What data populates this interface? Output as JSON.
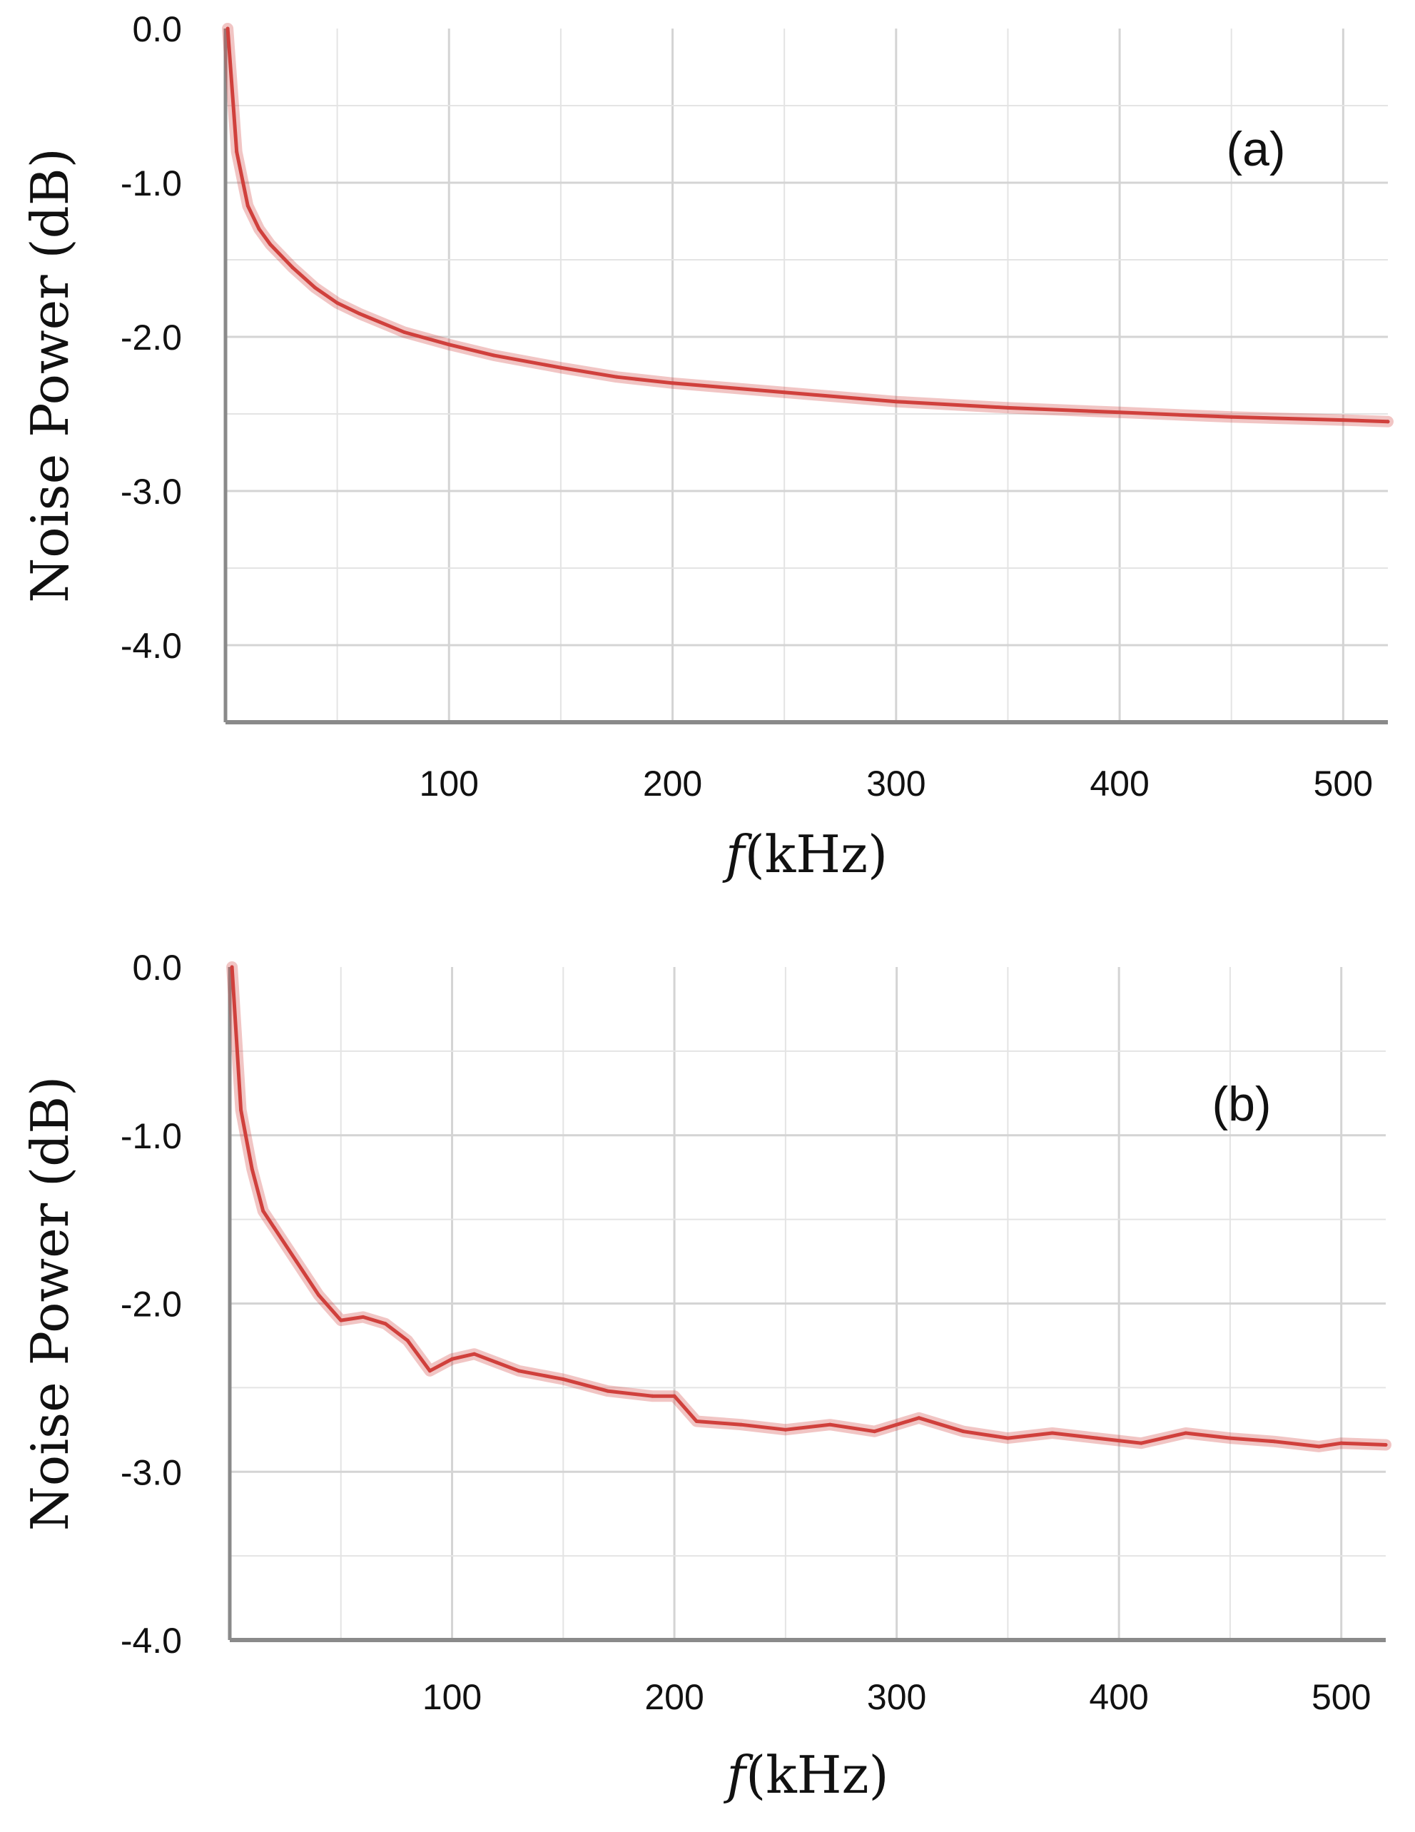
{
  "chart_data": [
    {
      "type": "line",
      "panel_label": "(a)",
      "ylabel": "Noise Power (dB)",
      "xlabel_italic": "f",
      "xlabel_rest": "(kHz)",
      "xlim": [
        0,
        520
      ],
      "ylim": [
        -4.5,
        0.0
      ],
      "x_ticks": [
        100,
        200,
        300,
        400,
        500
      ],
      "x_tick_labels": [
        "100",
        "200",
        "300",
        "400",
        "500"
      ],
      "y_ticks": [
        0.0,
        -1.0,
        -2.0,
        -3.0,
        -4.0
      ],
      "y_tick_labels": [
        "0.0",
        "-1.0",
        "-2.0",
        "-3.0",
        "-4.0"
      ],
      "grid": true,
      "series": [
        {
          "color": "#d0403c",
          "x": [
            1,
            5,
            10,
            15,
            20,
            30,
            40,
            50,
            60,
            80,
            100,
            120,
            150,
            175,
            200,
            250,
            300,
            350,
            400,
            450,
            500,
            520
          ],
          "y": [
            0.0,
            -0.8,
            -1.15,
            -1.3,
            -1.4,
            -1.55,
            -1.68,
            -1.78,
            -1.85,
            -1.97,
            -2.05,
            -2.12,
            -2.2,
            -2.26,
            -2.3,
            -2.36,
            -2.42,
            -2.46,
            -2.49,
            -2.52,
            -2.54,
            -2.55
          ]
        }
      ]
    },
    {
      "type": "line",
      "panel_label": "(b)",
      "ylabel": "Noise Power (dB)",
      "xlabel_italic": "f",
      "xlabel_rest": "(kHz)",
      "xlim": [
        0,
        520
      ],
      "ylim": [
        -4.0,
        0.0
      ],
      "x_ticks": [
        100,
        200,
        300,
        400,
        500
      ],
      "x_tick_labels": [
        "100",
        "200",
        "300",
        "400",
        "500"
      ],
      "y_ticks": [
        0.0,
        -1.0,
        -2.0,
        -3.0,
        -4.0
      ],
      "y_tick_labels": [
        "0.0",
        "-1.0",
        "-2.0",
        "-3.0",
        "-4.0"
      ],
      "grid": true,
      "series": [
        {
          "color": "#d0403c",
          "x": [
            1,
            5,
            10,
            15,
            20,
            30,
            40,
            50,
            60,
            70,
            80,
            90,
            100,
            110,
            120,
            130,
            150,
            170,
            190,
            200,
            210,
            230,
            250,
            270,
            290,
            310,
            330,
            350,
            370,
            390,
            410,
            430,
            450,
            470,
            490,
            500,
            520
          ],
          "y": [
            0.0,
            -0.85,
            -1.2,
            -1.45,
            -1.55,
            -1.75,
            -1.95,
            -2.1,
            -2.08,
            -2.12,
            -2.22,
            -2.4,
            -2.33,
            -2.3,
            -2.35,
            -2.4,
            -2.45,
            -2.52,
            -2.55,
            -2.55,
            -2.7,
            -2.72,
            -2.75,
            -2.72,
            -2.76,
            -2.68,
            -2.76,
            -2.8,
            -2.77,
            -2.8,
            -2.83,
            -2.77,
            -2.8,
            -2.82,
            -2.85,
            -2.83,
            -2.84
          ]
        }
      ]
    }
  ]
}
